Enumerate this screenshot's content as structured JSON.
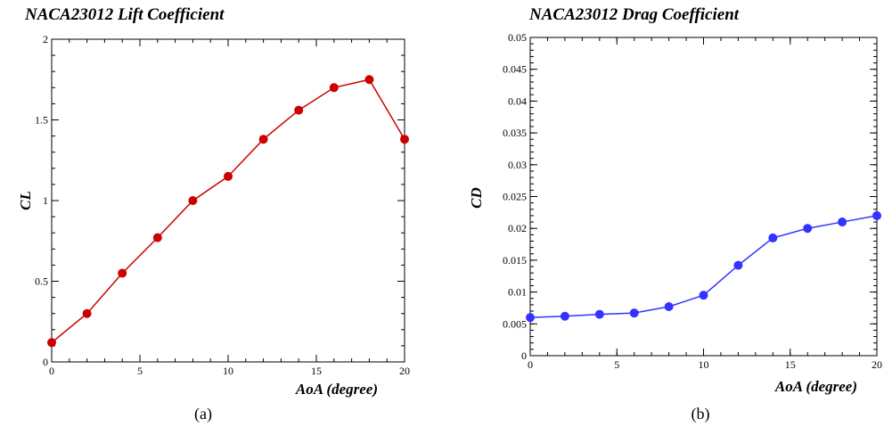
{
  "charts": {
    "a": {
      "caption": "(a)"
    },
    "b": {
      "caption": "(b)"
    }
  },
  "chart_data": [
    {
      "type": "line",
      "title": "NACA23012 Lift Coefficient",
      "xlabel": "AoA (degree)",
      "ylabel": "CL",
      "xlim": [
        0,
        20
      ],
      "ylim": [
        0,
        2
      ],
      "xticks": [
        0,
        5,
        10,
        15,
        20
      ],
      "xtick_labels": [
        "0",
        "5",
        "10",
        "15",
        "20"
      ],
      "yticks": [
        0,
        0.5,
        1,
        1.5,
        2
      ],
      "ytick_labels": [
        "0",
        "0.5",
        "1",
        "1.5",
        "2"
      ],
      "grid": false,
      "color": "#cc0000",
      "x": [
        0,
        2,
        4,
        6,
        8,
        10,
        12,
        14,
        16,
        18,
        20
      ],
      "y": [
        0.12,
        0.3,
        0.55,
        0.77,
        1.0,
        1.15,
        1.38,
        1.56,
        1.7,
        1.75,
        1.38
      ]
    },
    {
      "type": "line",
      "title": "NACA23012 Drag Coefficient",
      "xlabel": "AoA (degree)",
      "ylabel": "CD",
      "xlim": [
        0,
        20
      ],
      "ylim": [
        0,
        0.05
      ],
      "xticks": [
        0,
        5,
        10,
        15,
        20
      ],
      "xtick_labels": [
        "0",
        "5",
        "10",
        "15",
        "20"
      ],
      "yticks": [
        0,
        0.005,
        0.01,
        0.015,
        0.02,
        0.025,
        0.03,
        0.035,
        0.04,
        0.045,
        0.05
      ],
      "ytick_labels": [
        "0",
        "0.005",
        "0.01",
        "0.015",
        "0.02",
        "0.025",
        "0.03",
        "0.035",
        "0.04",
        "0.045",
        "0.05"
      ],
      "grid": false,
      "color": "#3333ff",
      "x": [
        0,
        2,
        4,
        6,
        8,
        10,
        12,
        14,
        16,
        18,
        20
      ],
      "y": [
        0.006,
        0.0062,
        0.0065,
        0.0067,
        0.0077,
        0.0095,
        0.0142,
        0.0185,
        0.02,
        0.021,
        0.022
      ]
    }
  ]
}
